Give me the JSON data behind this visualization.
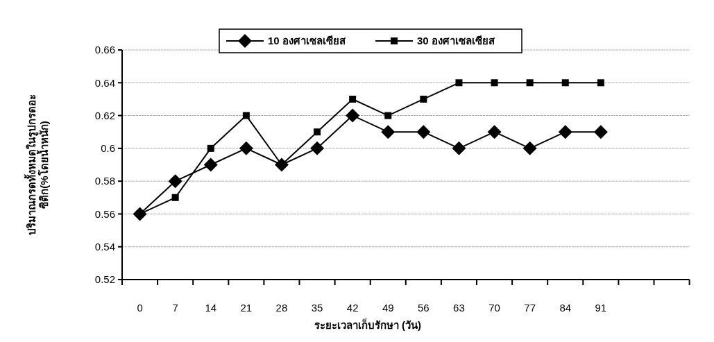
{
  "chart_data": {
    "type": "line",
    "xlabel": "ระยะเวลาเก็บรักษา (วัน)",
    "ylabel": "ปริมาณกรดทั้งหมดในรูปกรดอะ\nซิติก(%โดยน้ำหนัก)",
    "categories": [
      "0",
      "7",
      "14",
      "21",
      "28",
      "35",
      "42",
      "49",
      "56",
      "63",
      "70",
      "77",
      "84",
      "91",
      null,
      null
    ],
    "series": [
      {
        "name": "10 องศาเซลเซียส",
        "color": "#000000",
        "marker": "diamond",
        "values": [
          0.56,
          0.58,
          0.59,
          0.6,
          0.59,
          0.6,
          0.62,
          0.61,
          0.61,
          0.6,
          0.61,
          0.6,
          0.61,
          0.61,
          null,
          null
        ]
      },
      {
        "name": "30 องศาเซลเซียส",
        "color": "#000000",
        "marker": "square",
        "values": [
          0.56,
          0.57,
          0.6,
          0.62,
          0.59,
          0.61,
          0.63,
          0.62,
          0.63,
          0.64,
          0.64,
          0.64,
          0.64,
          0.64,
          null,
          null
        ]
      }
    ],
    "ylim": [
      0.52,
      0.66
    ],
    "yticks": [
      0.52,
      0.54,
      0.56,
      0.58,
      0.6,
      0.62,
      0.64,
      0.66
    ],
    "grid": "y",
    "legend": "top",
    "line_style": "solid"
  }
}
